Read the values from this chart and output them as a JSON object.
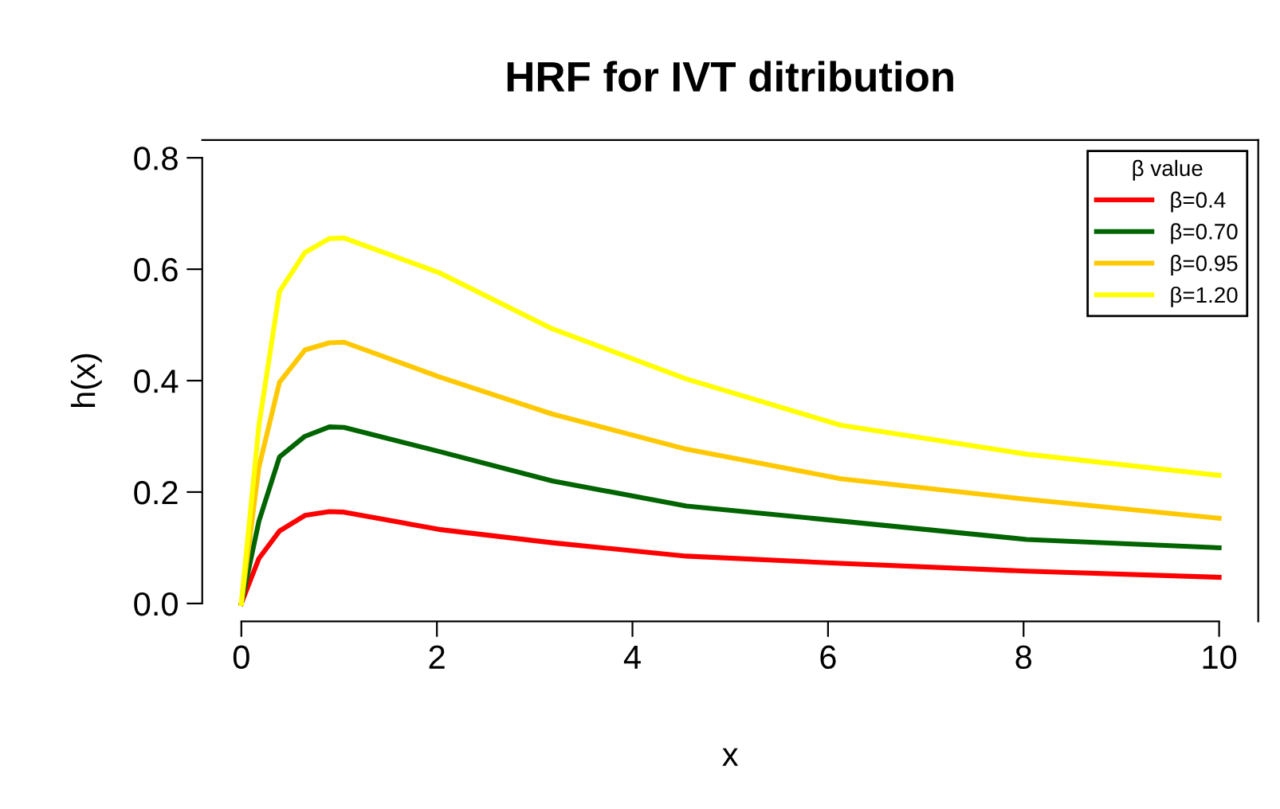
{
  "chart_data": {
    "type": "line",
    "title": "HRF for IVT ditribution",
    "xlabel": "x",
    "ylabel": "h(x)",
    "legend_title": "β value",
    "legend": "top right",
    "grid": false,
    "marker": "none",
    "line_style": "solid",
    "xlim": [
      -0.4,
      10.4
    ],
    "ylim": [
      -0.032,
      0.832
    ],
    "xticks": [
      0,
      2,
      4,
      6,
      8,
      10
    ],
    "yticks": [
      {
        "value": 0.0,
        "label": "0.0"
      },
      0.2,
      0.4,
      0.6,
      0.8
    ],
    "x": [
      0,
      0.18,
      0.39,
      0.65,
      0.9,
      1.05,
      2.02,
      3.18,
      4.55,
      6.13,
      8.03,
      10
    ],
    "series": [
      {
        "name": "β=0.4",
        "color": "#ff0000",
        "values": [
          0,
          0.081,
          0.13,
          0.158,
          0.165,
          0.164,
          0.133,
          0.109,
          0.085,
          0.072,
          0.058,
          0.047
        ]
      },
      {
        "name": "β=0.70",
        "color": "#006400",
        "values": [
          0,
          0.148,
          0.263,
          0.3,
          0.317,
          0.316,
          0.273,
          0.22,
          0.175,
          0.148,
          0.115,
          0.1
        ]
      },
      {
        "name": "β=0.95",
        "color": "#ffc800",
        "values": [
          0,
          0.245,
          0.397,
          0.455,
          0.468,
          0.469,
          0.407,
          0.34,
          0.277,
          0.224,
          0.187,
          0.153
        ]
      },
      {
        "name": "β=1.20",
        "color": "#ffff00",
        "values": [
          0,
          0.32,
          0.56,
          0.63,
          0.655,
          0.656,
          0.594,
          0.493,
          0.403,
          0.32,
          0.268,
          0.23
        ]
      }
    ]
  }
}
